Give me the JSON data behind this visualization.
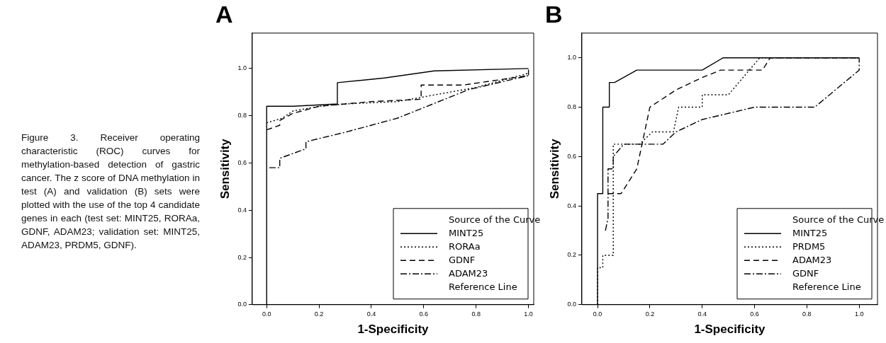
{
  "chart_data": [
    {
      "type": "other",
      "annotations": [
        "Figure 3. Receiver operating characteristic (ROC) curves for methylation-based detection of gastric cancer. The z score of DNA methylation in test (A) and validation (B) sets were plotted with the use of the top 4 candidate genes in each (test set: MINT25, RORAa, GDNF, ADAM23; validation set: MINT25, ADAM23, PRDM5, GDNF)."
      ]
    },
    {
      "type": "line",
      "title": "A",
      "xlabel": "1-Specificity",
      "ylabel": "Sensitivity",
      "legend_title": "Source of the Curve",
      "legend": "bottom right",
      "grid": false,
      "marker": "none",
      "xlim": [
        -0.055,
        1.02
      ],
      "ylim": [
        0,
        1.15
      ],
      "xticks": [
        {
          "value": 0,
          "label": "0.0"
        },
        {
          "value": 0.2,
          "label": "0.2"
        },
        {
          "value": 0.4,
          "label": "0.4"
        },
        {
          "value": 0.6,
          "label": "0.6"
        },
        {
          "value": 0.8,
          "label": "0.8"
        },
        {
          "value": 1,
          "label": "1.0"
        }
      ],
      "yticks": [
        {
          "value": 0,
          "label": "0.0"
        },
        {
          "value": 0.2,
          "label": "0.2"
        },
        {
          "value": 0.4,
          "label": "0.4"
        },
        {
          "value": 0.6,
          "label": "0.6"
        },
        {
          "value": 0.8,
          "label": "0.8"
        },
        {
          "value": 1,
          "label": "1.0"
        }
      ],
      "annotations": [
        "Reference Line"
      ],
      "series": [
        {
          "name": "MINT25",
          "color": "#000000",
          "line_style": "solid",
          "x": [
            0,
            0,
            0.1,
            0.27,
            0.27,
            0.45,
            0.64,
            1.0
          ],
          "values": [
            0,
            0.84,
            0.84,
            0.85,
            0.94,
            0.96,
            0.99,
            1.0
          ]
        },
        {
          "name": "RORAa",
          "color": "#000000",
          "line_style": "dotted",
          "x": [
            0,
            0.06,
            0.1,
            0.2,
            0.3,
            0.5,
            0.6,
            0.8,
            0.9,
            1.0
          ],
          "values": [
            0.77,
            0.79,
            0.82,
            0.84,
            0.85,
            0.86,
            0.88,
            0.92,
            0.95,
            0.98
          ]
        },
        {
          "name": "GDNF",
          "color": "#000000",
          "line_style": "dashed",
          "x": [
            0,
            0.05,
            0.05,
            0.1,
            0.2,
            0.4,
            0.59,
            0.59,
            0.75,
            1.0,
            1.0
          ],
          "values": [
            0.74,
            0.76,
            0.78,
            0.81,
            0.84,
            0.86,
            0.87,
            0.93,
            0.93,
            0.97,
            1.0
          ]
        },
        {
          "name": "ADAM23",
          "color": "#000000",
          "line_style": "dashdot",
          "x": [
            0.01,
            0.05,
            0.05,
            0.1,
            0.15,
            0.15,
            0.3,
            0.5,
            0.77,
            1.0
          ],
          "values": [
            0.58,
            0.58,
            0.62,
            0.64,
            0.66,
            0.69,
            0.73,
            0.79,
            0.91,
            0.97
          ]
        }
      ]
    },
    {
      "type": "line",
      "title": "B",
      "xlabel": "1-Specificity",
      "ylabel": "Sensitivity",
      "legend_title": "Source of the Curve",
      "legend": "bottom right",
      "grid": false,
      "marker": "none",
      "xlim": [
        -0.06,
        1.07
      ],
      "ylim": [
        0,
        1.1
      ],
      "xticks": [
        {
          "value": 0,
          "label": "0.0"
        },
        {
          "value": 0.2,
          "label": "0.2"
        },
        {
          "value": 0.4,
          "label": "0.4"
        },
        {
          "value": 0.6,
          "label": "0.6"
        },
        {
          "value": 0.8,
          "label": "0.8"
        },
        {
          "value": 1,
          "label": "1.0"
        }
      ],
      "yticks": [
        {
          "value": 0,
          "label": "0.0"
        },
        {
          "value": 0.2,
          "label": "0.2"
        },
        {
          "value": 0.4,
          "label": "0.4"
        },
        {
          "value": 0.6,
          "label": "0.6"
        },
        {
          "value": 0.8,
          "label": "0.8"
        },
        {
          "value": 1,
          "label": "1.0"
        }
      ],
      "annotations": [
        "Reference Line"
      ],
      "series": [
        {
          "name": "MINT25",
          "color": "#000000",
          "line_style": "solid",
          "x": [
            0,
            0,
            0.02,
            0.02,
            0.045,
            0.045,
            0.065,
            0.15,
            0.4,
            0.48,
            1.0
          ],
          "values": [
            0,
            0.45,
            0.45,
            0.8,
            0.8,
            0.9,
            0.9,
            0.95,
            0.95,
            1.0,
            1.0
          ]
        },
        {
          "name": "PRDM5",
          "color": "#000000",
          "line_style": "dotted",
          "x": [
            0,
            0,
            0.02,
            0.02,
            0.06,
            0.06,
            0.16,
            0.21,
            0.29,
            0.31,
            0.4,
            0.4,
            0.5,
            0.62,
            1.0
          ],
          "values": [
            0,
            0.15,
            0.15,
            0.2,
            0.2,
            0.65,
            0.65,
            0.7,
            0.7,
            0.8,
            0.8,
            0.85,
            0.85,
            1.0,
            1.0
          ]
        },
        {
          "name": "ADAM23",
          "color": "#000000",
          "line_style": "dashed",
          "x": [
            0.04,
            0.09,
            0.15,
            0.17,
            0.2,
            0.3,
            0.4,
            0.47,
            0.63,
            0.66,
            1.0
          ],
          "values": [
            0.45,
            0.45,
            0.55,
            0.65,
            0.8,
            0.87,
            0.92,
            0.95,
            0.95,
            1.0,
            1.0
          ]
        },
        {
          "name": "GDNF",
          "color": "#000000",
          "line_style": "dashdot",
          "x": [
            0.03,
            0.04,
            0.04,
            0.06,
            0.06,
            0.1,
            0.25,
            0.3,
            0.4,
            0.6,
            0.83,
            1.0,
            1.0
          ],
          "values": [
            0.3,
            0.35,
            0.55,
            0.55,
            0.6,
            0.65,
            0.65,
            0.7,
            0.75,
            0.8,
            0.8,
            0.95,
            1.0
          ]
        }
      ]
    }
  ]
}
